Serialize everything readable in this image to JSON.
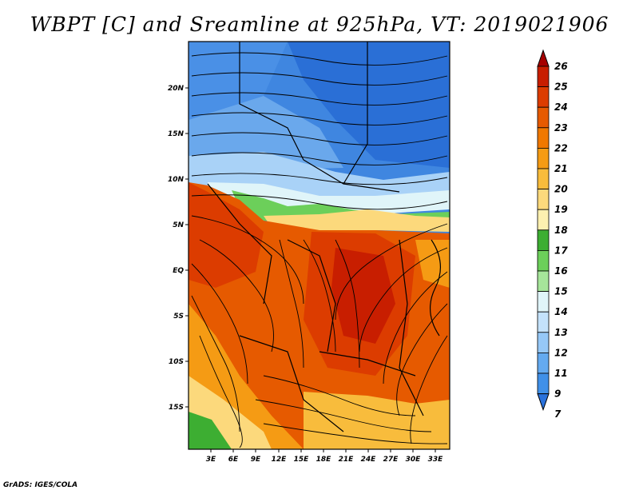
{
  "title": "WBPT [C] and Sreamline at 925hPa, VT: 2019021906",
  "credit": "GrADS: IGES/COLA",
  "axes": {
    "lat_labels": [
      "20N",
      "15N",
      "10N",
      "5N",
      "EQ",
      "5S",
      "10S",
      "15S"
    ],
    "lon_labels": [
      "3E",
      "6E",
      "9E",
      "12E",
      "15E",
      "18E",
      "21E",
      "24E",
      "27E",
      "30E",
      "33E"
    ]
  },
  "colorbar": {
    "levels": [
      "26",
      "25",
      "24",
      "23",
      "22",
      "21",
      "20",
      "19",
      "18",
      "17",
      "16",
      "15",
      "14",
      "13",
      "12",
      "11",
      "9",
      "7"
    ],
    "colors": [
      "#a50000",
      "#c81e00",
      "#dc3c00",
      "#e65a00",
      "#f07800",
      "#f59b14",
      "#f8bc3c",
      "#fcd97c",
      "#fdf0b0",
      "#3dae32",
      "#6ccf5a",
      "#a6e59a",
      "#e0f5f9",
      "#c4e2fb",
      "#96c8f7",
      "#64aaf0",
      "#4090e8",
      "#2a72dc"
    ]
  }
}
